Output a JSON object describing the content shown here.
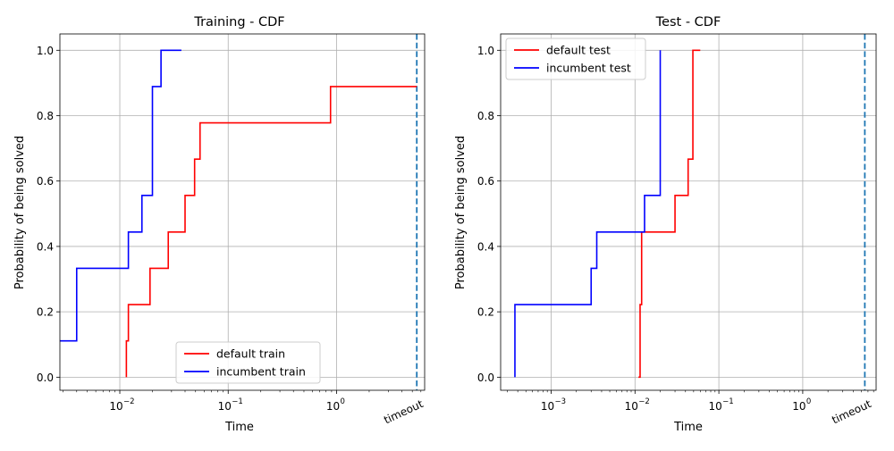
{
  "chart_data": [
    {
      "type": "line",
      "drawstyle": "steps-post",
      "title": "Training - CDF",
      "xlabel": "Time",
      "ylabel": "Probability of being solved",
      "xscale": "log",
      "xlim": [
        0.0028,
        6.5
      ],
      "ylim": [
        -0.04,
        1.05
      ],
      "x_ticks": [
        {
          "value": 0.01,
          "base": "10",
          "exp": "−2"
        },
        {
          "value": 0.1,
          "base": "10",
          "exp": "−1"
        },
        {
          "value": 1,
          "base": "10",
          "exp": "0"
        }
      ],
      "y_ticks": [
        {
          "value": 0.0,
          "label": "0.0"
        },
        {
          "value": 0.2,
          "label": "0.2"
        },
        {
          "value": 0.4,
          "label": "0.4"
        },
        {
          "value": 0.6,
          "label": "0.6"
        },
        {
          "value": 0.8,
          "label": "0.8"
        },
        {
          "value": 1.0,
          "label": "1.0"
        }
      ],
      "grid": true,
      "legend": "lower center",
      "timeout": {
        "value": 5.5,
        "label": "timeout",
        "color": "#1f77b4"
      },
      "series": [
        {
          "name": "default train",
          "color": "#ff0000",
          "x": [
            0.0115,
            0.0115,
            0.012,
            0.012,
            0.019,
            0.028,
            0.04,
            0.049,
            0.055,
            0.88,
            5.5
          ],
          "y": [
            0.0,
            0.111,
            0.222,
            0.222,
            0.333,
            0.444,
            0.556,
            0.667,
            0.778,
            0.889,
            0.889
          ]
        },
        {
          "name": "incumbent train",
          "color": "#0000ff",
          "x": [
            0.0028,
            0.004,
            0.012,
            0.016,
            0.02,
            0.024,
            0.037
          ],
          "y": [
            0.111,
            0.333,
            0.444,
            0.556,
            0.889,
            1.0,
            1.0
          ]
        }
      ]
    },
    {
      "type": "line",
      "drawstyle": "steps-post",
      "title": "Test - CDF",
      "xlabel": "Time",
      "ylabel": "Probability of being solved",
      "xscale": "log",
      "xlim": [
        0.00025,
        7.5
      ],
      "ylim": [
        -0.04,
        1.05
      ],
      "x_ticks": [
        {
          "value": 0.001,
          "base": "10",
          "exp": "−3"
        },
        {
          "value": 0.01,
          "base": "10",
          "exp": "−2"
        },
        {
          "value": 0.1,
          "base": "10",
          "exp": "−1"
        },
        {
          "value": 1,
          "base": "10",
          "exp": "0"
        }
      ],
      "y_ticks": [
        {
          "value": 0.0,
          "label": "0.0"
        },
        {
          "value": 0.2,
          "label": "0.2"
        },
        {
          "value": 0.4,
          "label": "0.4"
        },
        {
          "value": 0.6,
          "label": "0.6"
        },
        {
          "value": 0.8,
          "label": "0.8"
        },
        {
          "value": 1.0,
          "label": "1.0"
        }
      ],
      "grid": true,
      "legend": "upper left",
      "timeout": {
        "value": 5.5,
        "label": "timeout",
        "color": "#1f77b4"
      },
      "series": [
        {
          "name": "default test",
          "color": "#ff0000",
          "x": [
            0.011,
            0.0115,
            0.012,
            0.03,
            0.043,
            0.049,
            0.06
          ],
          "y": [
            0.0,
            0.222,
            0.444,
            0.556,
            0.667,
            1.0,
            1.0
          ]
        },
        {
          "name": "incumbent test",
          "color": "#0000ff",
          "x": [
            0.00037,
            0.00037,
            0.003,
            0.0035,
            0.013,
            0.02,
            0.02
          ],
          "y": [
            0.0,
            0.222,
            0.333,
            0.444,
            0.556,
            1.0,
            1.0
          ]
        }
      ]
    }
  ]
}
